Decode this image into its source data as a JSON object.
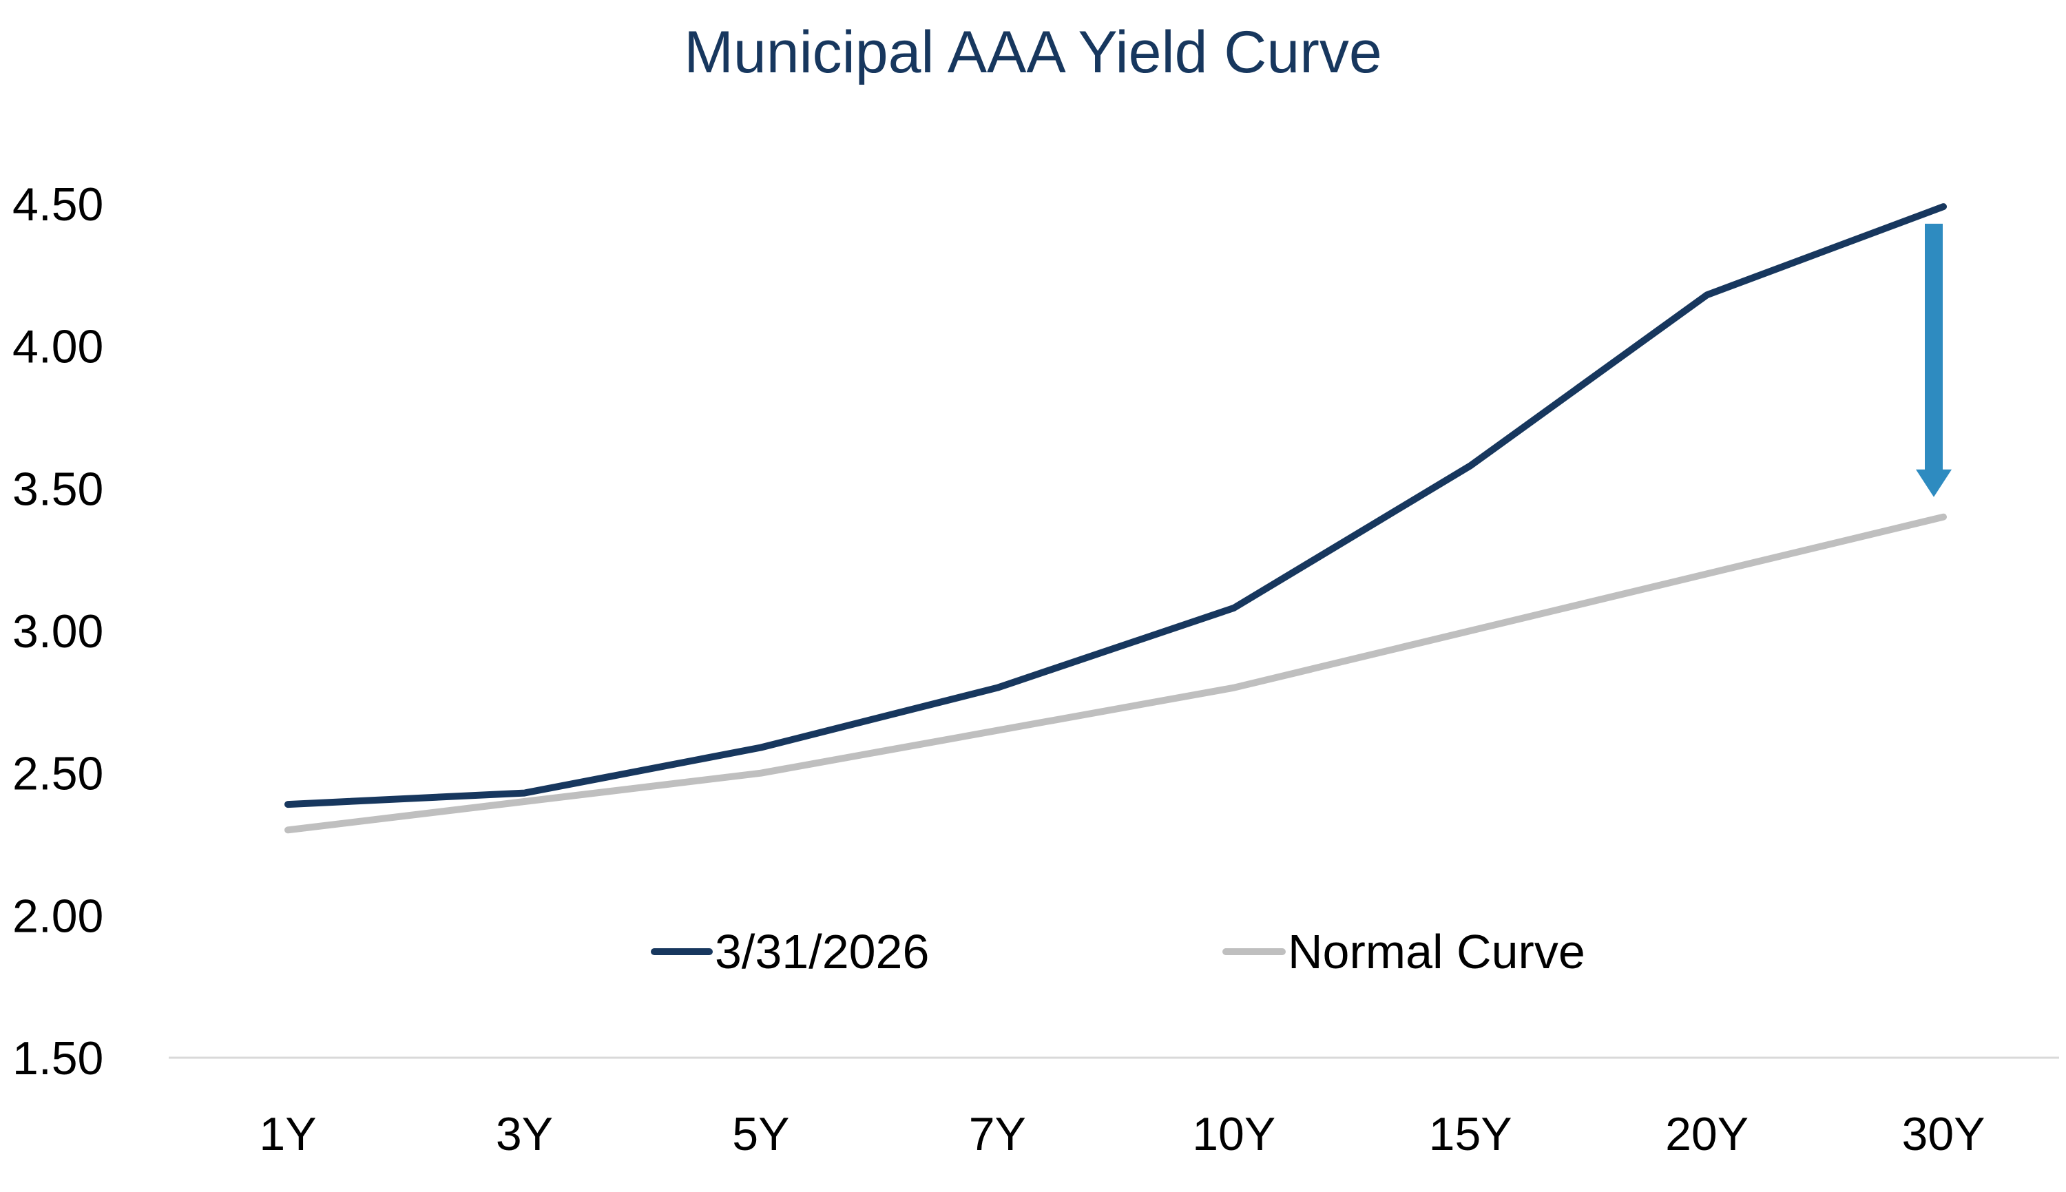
{
  "chart_data": {
    "type": "line",
    "title": "Municipal AAA Yield Curve",
    "xlabel": "",
    "ylabel": "",
    "categories": [
      "1Y",
      "3Y",
      "5Y",
      "7Y",
      "10Y",
      "15Y",
      "20Y",
      "30Y"
    ],
    "ylim": [
      1.5,
      4.5
    ],
    "yticks": [
      "4.50",
      "4.00",
      "3.50",
      "3.00",
      "2.50",
      "2.00",
      "1.50"
    ],
    "grid": false,
    "legend_position": "bottom-center",
    "series": [
      {
        "name": "3/31/2026",
        "color": "#17375e",
        "values": [
          2.39,
          2.43,
          2.59,
          2.8,
          3.08,
          3.58,
          4.18,
          4.49
        ]
      },
      {
        "name": "Normal Curve",
        "color": "#bfbfbf",
        "values": [
          2.3,
          2.4,
          2.5,
          2.65,
          2.8,
          3.0,
          3.2,
          3.4
        ]
      }
    ],
    "annotation": {
      "type": "down-arrow",
      "category": "30Y",
      "from": 4.43,
      "to": 3.47,
      "color": "#2e8bc0"
    }
  }
}
